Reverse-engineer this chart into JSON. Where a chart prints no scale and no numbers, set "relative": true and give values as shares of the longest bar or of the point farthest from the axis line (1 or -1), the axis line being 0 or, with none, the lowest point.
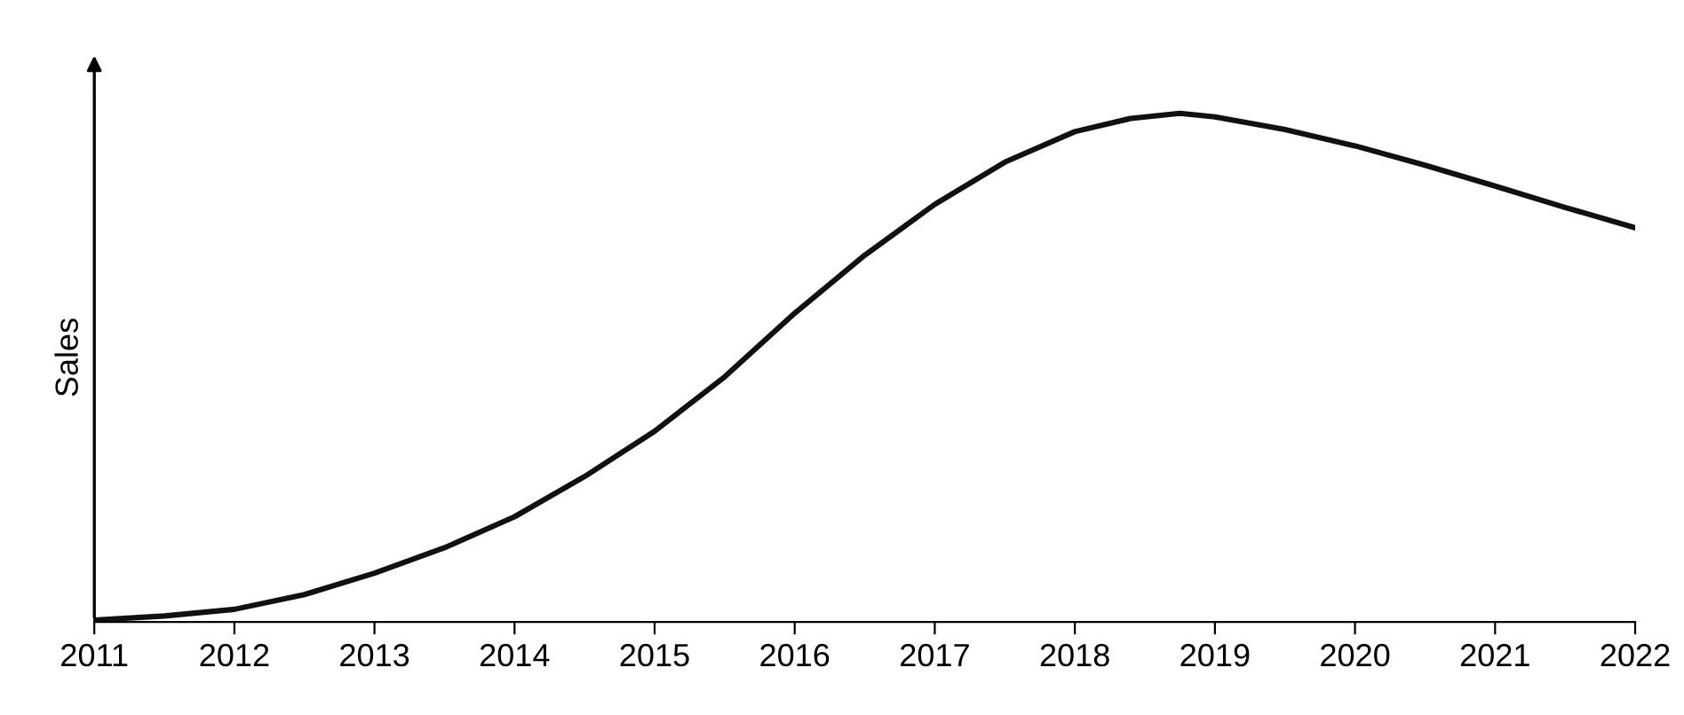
{
  "chart_data": {
    "type": "line",
    "ylabel": "Sales",
    "relative": true,
    "color": "#111111",
    "x": [
      2011,
      2011.5,
      2012,
      2012.5,
      2013,
      2013.5,
      2014,
      2014.5,
      2015,
      2015.5,
      2016,
      2016.5,
      2017,
      2017.5,
      2018,
      2018.4,
      2018.75,
      2019,
      2019.5,
      2020,
      2020.5,
      2021,
      2021.5,
      2022
    ],
    "values": [
      0.004,
      0.012,
      0.025,
      0.054,
      0.096,
      0.146,
      0.207,
      0.286,
      0.375,
      0.482,
      0.607,
      0.721,
      0.821,
      0.904,
      0.964,
      0.99,
      1,
      0.993,
      0.968,
      0.936,
      0.898,
      0.857,
      0.815,
      0.775
    ],
    "xlim": [
      2011,
      2022
    ],
    "xticks": [
      2011,
      2012,
      2013,
      2014,
      2015,
      2016,
      2017,
      2018,
      2019,
      2020,
      2021,
      2022
    ],
    "grid": false,
    "legend": false,
    "marker": "none",
    "line_style": "solid"
  }
}
